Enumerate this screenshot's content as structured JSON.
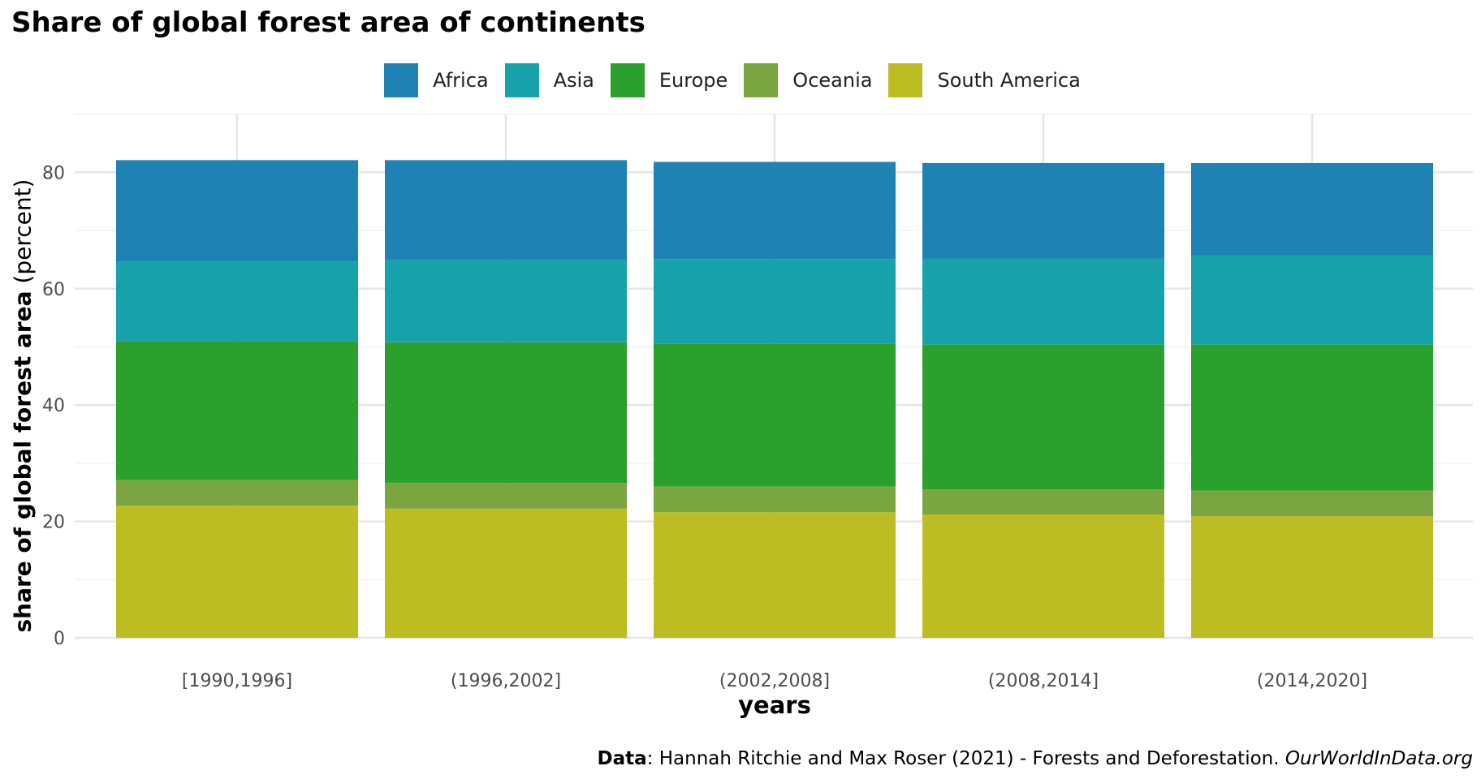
{
  "chart_data": {
    "type": "bar",
    "stacked": true,
    "title": "Share of global forest area of continents",
    "xlabel": "years",
    "ylabel_bold": "share of global forest area",
    "ylabel_rest": " (percent)",
    "categories": [
      "[1990,1996]",
      "(1996,2002]",
      "(2002,2008]",
      "(2008,2014]",
      "(2014,2020]"
    ],
    "series": [
      {
        "name": "South America",
        "color": "#bcbd22",
        "values": [
          22.7,
          22.2,
          21.6,
          21.2,
          20.9
        ]
      },
      {
        "name": "Oceania",
        "color": "#7aa540",
        "values": [
          4.4,
          4.4,
          4.4,
          4.3,
          4.4
        ]
      },
      {
        "name": "Europe",
        "color": "#2ca02c",
        "values": [
          23.9,
          24.2,
          24.6,
          24.9,
          25.1
        ]
      },
      {
        "name": "Asia",
        "color": "#17a2aa",
        "values": [
          13.7,
          14.1,
          14.5,
          14.8,
          15.3
        ]
      },
      {
        "name": "Africa",
        "color": "#1f82b4",
        "values": [
          17.4,
          17.2,
          16.7,
          16.4,
          15.9
        ]
      }
    ],
    "legend_order": [
      "Africa",
      "Asia",
      "Europe",
      "Oceania",
      "South America"
    ],
    "ylim": [
      0,
      90
    ],
    "yticks": [
      0,
      20,
      40,
      60,
      80
    ],
    "grid": true,
    "legend_position": "top"
  },
  "caption": {
    "bold": "Data",
    "text": ": Hannah Ritchie and Max Roser (2021) - Forests and Deforestation. ",
    "italic": "OurWorldInData.org"
  }
}
